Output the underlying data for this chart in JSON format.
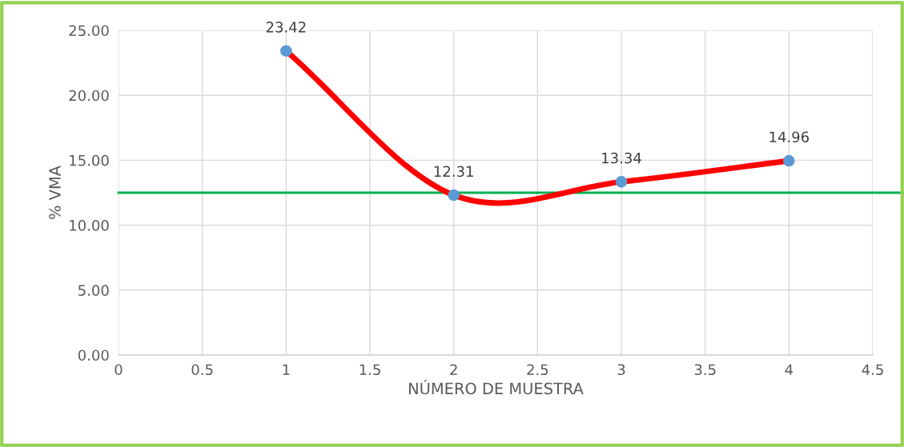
{
  "chart_data": {
    "type": "line",
    "xlabel": "NÚMERO DE MUESTRA",
    "ylabel": "% VMA",
    "x": [
      1,
      2,
      3,
      4
    ],
    "series": [
      {
        "color": "#ff0000",
        "values": [
          23.42,
          12.31,
          13.34,
          14.96
        ]
      },
      {
        "type": "scatter",
        "color": "#5b9bd5",
        "values": [
          23.42,
          12.31,
          13.34,
          14.96
        ],
        "marker": "circle",
        "data_labels": true
      }
    ],
    "xlim": [
      0,
      4.5
    ],
    "xticks": [
      0,
      0.5,
      1,
      1.5,
      2,
      2.5,
      3,
      3.5,
      4,
      4.5
    ],
    "ylim": [
      0,
      25
    ],
    "yticks": [
      {
        "value": 0,
        "label": "0.00"
      },
      {
        "value": 5,
        "label": "5.00"
      },
      {
        "value": 10,
        "label": "10.00"
      },
      {
        "value": 15,
        "label": "15.00"
      },
      {
        "value": 20,
        "label": "20.00"
      },
      {
        "value": 25,
        "label": "25.00"
      }
    ],
    "ref_lines": [
      {
        "axis": "y",
        "value": 12.5,
        "color": "#00b050",
        "line_style": "solid"
      }
    ],
    "grid": true,
    "legend": false
  }
}
